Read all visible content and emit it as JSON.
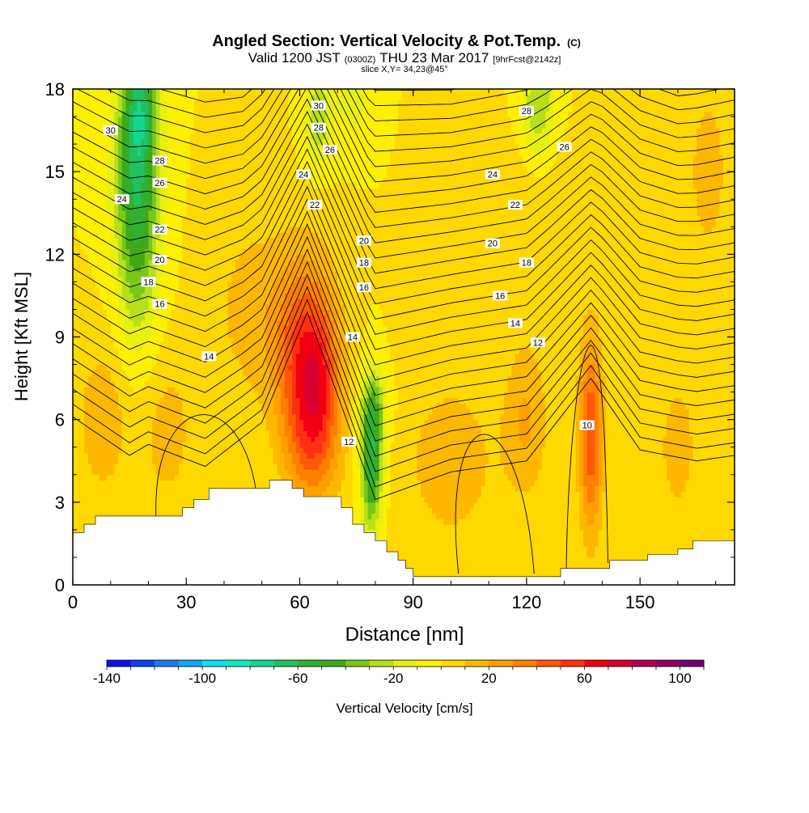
{
  "chart_data": {
    "type": "heatmap",
    "title": "Angled Section: Vertical Velocity & Pot.Temp.",
    "title_unit": "(C)",
    "subtitle_main": "Valid 1200 JST",
    "subtitle_utc": "(0300Z)",
    "subtitle_date": "THU 23 Mar 2017",
    "subtitle_fcst": "[9hrFcst@2142z]",
    "slice_label": "slice X,Y= 34,23@45°",
    "xlabel": "Distance [nm]",
    "ylabel": "Height [Kft MSL]",
    "xlim": [
      0,
      175
    ],
    "ylim": [
      0,
      18
    ],
    "x_ticks": [
      {
        "value": 0,
        "label": "0"
      },
      {
        "value": 30,
        "label": "30"
      },
      {
        "value": 60,
        "label": "60"
      },
      {
        "value": 90,
        "label": "90"
      },
      {
        "value": 120,
        "label": "120"
      },
      {
        "value": 150,
        "label": "150"
      }
    ],
    "y_ticks": [
      {
        "value": 0,
        "label": "0"
      },
      {
        "value": 3,
        "label": "3"
      },
      {
        "value": 6,
        "label": "6"
      },
      {
        "value": 9,
        "label": "9"
      },
      {
        "value": 12,
        "label": "12"
      },
      {
        "value": 15,
        "label": "15"
      },
      {
        "value": 18,
        "label": "18"
      }
    ],
    "colorbar": {
      "label": "Vertical Velocity [cm/s]",
      "min": -140,
      "max": 110,
      "step": 10,
      "tick_labels": [
        {
          "value": -140,
          "label": "-140"
        },
        {
          "value": -100,
          "label": "-100"
        },
        {
          "value": -60,
          "label": "-60"
        },
        {
          "value": -20,
          "label": "-20"
        },
        {
          "value": 20,
          "label": "20"
        },
        {
          "value": 60,
          "label": "60"
        },
        {
          "value": 100,
          "label": "100"
        }
      ],
      "colors": [
        "#1010f0",
        "#1040f0",
        "#1a78f0",
        "#10a8f0",
        "#10e0f0",
        "#10e8c0",
        "#10d890",
        "#20c060",
        "#30b030",
        "#40a818",
        "#78c818",
        "#b8e018",
        "#e8f010",
        "#fff000",
        "#ffd800",
        "#ffb800",
        "#ffa000",
        "#ff8000",
        "#ff5808",
        "#ff3010",
        "#f00010",
        "#d80030",
        "#b00050",
        "#900060",
        "#700070"
      ]
    },
    "velocity_features": [
      {
        "x": 62,
        "y": 8.0,
        "sx": 5.5,
        "sy": 2.5,
        "w": 60
      },
      {
        "x": 66,
        "y": 7.5,
        "sx": 3.0,
        "sy": 1.5,
        "w": 15
      },
      {
        "x": 64,
        "y": 5.0,
        "sx": 5.0,
        "sy": 1.5,
        "w": 25
      },
      {
        "x": 137,
        "y": 5.5,
        "sx": 2.2,
        "sy": 2.5,
        "w": 50
      },
      {
        "x": 17,
        "y": 14.5,
        "sx": 4.0,
        "sy": 3.5,
        "w": -60
      },
      {
        "x": 18,
        "y": 17.5,
        "sx": 3.0,
        "sy": 1.5,
        "w": -30
      },
      {
        "x": 79,
        "y": 4.5,
        "sx": 2.0,
        "sy": 1.8,
        "w": -60
      },
      {
        "x": 80,
        "y": 6.5,
        "sx": 3.0,
        "sy": 1.0,
        "w": -20
      },
      {
        "x": 65,
        "y": 17.0,
        "sx": 2.5,
        "sy": 1.2,
        "w": -30
      },
      {
        "x": 123,
        "y": 17.5,
        "sx": 3.0,
        "sy": 1.5,
        "w": -30
      },
      {
        "x": 74,
        "y": 17.5,
        "sx": 3.0,
        "sy": 1.0,
        "w": -15
      },
      {
        "x": 8,
        "y": 6.0,
        "sx": 5.0,
        "sy": 2.0,
        "w": 18
      },
      {
        "x": 25,
        "y": 5.5,
        "sx": 5.0,
        "sy": 2.0,
        "w": 15
      },
      {
        "x": 48,
        "y": 10.0,
        "sx": 8.0,
        "sy": 2.5,
        "w": 15
      },
      {
        "x": 100,
        "y": 4.5,
        "sx": 10.0,
        "sy": 2.5,
        "w": 15
      },
      {
        "x": 120,
        "y": 6.0,
        "sx": 4.0,
        "sy": 2.0,
        "w": 20
      },
      {
        "x": 160,
        "y": 5.0,
        "sx": 4.0,
        "sy": 2.0,
        "w": 15
      },
      {
        "x": 168,
        "y": 15.0,
        "sx": 4.0,
        "sy": 2.5,
        "w": 15
      },
      {
        "x": 120,
        "y": 13.0,
        "sx": 10.0,
        "sy": 2.0,
        "w": 10
      }
    ],
    "velocity_background": 0,
    "isentropes": [
      {
        "level": 10,
        "label": "10"
      },
      {
        "level": 12,
        "label": "12"
      },
      {
        "level": 14,
        "label": "14"
      },
      {
        "level": 16,
        "label": "16"
      },
      {
        "level": 18,
        "label": "18"
      },
      {
        "level": 20,
        "label": "20"
      },
      {
        "level": 22,
        "label": "22"
      },
      {
        "level": 24,
        "label": "24"
      },
      {
        "level": 26,
        "label": "26"
      },
      {
        "level": 28,
        "label": "28"
      },
      {
        "level": 30,
        "label": "30"
      }
    ],
    "isentrope_labels": [
      {
        "text": "30",
        "x": 10,
        "y": 16.5
      },
      {
        "text": "28",
        "x": 23,
        "y": 15.4
      },
      {
        "text": "26",
        "x": 23,
        "y": 14.6
      },
      {
        "text": "24",
        "x": 13,
        "y": 14.0
      },
      {
        "text": "22",
        "x": 23,
        "y": 12.9
      },
      {
        "text": "20",
        "x": 23,
        "y": 11.8
      },
      {
        "text": "18",
        "x": 20,
        "y": 11.0
      },
      {
        "text": "16",
        "x": 23,
        "y": 10.2
      },
      {
        "text": "14",
        "x": 36,
        "y": 8.3
      },
      {
        "text": "30",
        "x": 65,
        "y": 17.4
      },
      {
        "text": "28",
        "x": 65,
        "y": 16.6
      },
      {
        "text": "26",
        "x": 68,
        "y": 15.8
      },
      {
        "text": "24",
        "x": 61,
        "y": 14.9
      },
      {
        "text": "22",
        "x": 64,
        "y": 13.8
      },
      {
        "text": "20",
        "x": 77,
        "y": 12.5
      },
      {
        "text": "18",
        "x": 77,
        "y": 11.7
      },
      {
        "text": "16",
        "x": 77,
        "y": 10.8
      },
      {
        "text": "14",
        "x": 74,
        "y": 9.0
      },
      {
        "text": "12",
        "x": 73,
        "y": 5.2
      },
      {
        "text": "28",
        "x": 120,
        "y": 17.2
      },
      {
        "text": "26",
        "x": 130,
        "y": 15.9
      },
      {
        "text": "24",
        "x": 111,
        "y": 14.9
      },
      {
        "text": "22",
        "x": 117,
        "y": 13.8
      },
      {
        "text": "20",
        "x": 111,
        "y": 12.4
      },
      {
        "text": "18",
        "x": 120,
        "y": 11.7
      },
      {
        "text": "16",
        "x": 113,
        "y": 10.5
      },
      {
        "text": "14",
        "x": 117,
        "y": 9.5
      },
      {
        "text": "12",
        "x": 123,
        "y": 8.8
      },
      {
        "text": "10",
        "x": 136,
        "y": 5.8
      }
    ],
    "terrain_profile": [
      [
        0,
        1.9
      ],
      [
        3,
        1.9
      ],
      [
        3,
        2.2
      ],
      [
        6,
        2.2
      ],
      [
        6,
        2.5
      ],
      [
        29,
        2.5
      ],
      [
        29,
        2.8
      ],
      [
        32,
        2.8
      ],
      [
        32,
        3.1
      ],
      [
        36,
        3.1
      ],
      [
        36,
        3.5
      ],
      [
        52,
        3.5
      ],
      [
        52,
        3.8
      ],
      [
        58,
        3.8
      ],
      [
        58,
        3.5
      ],
      [
        61,
        3.5
      ],
      [
        61,
        3.2
      ],
      [
        71,
        3.2
      ],
      [
        71,
        2.8
      ],
      [
        74,
        2.8
      ],
      [
        74,
        2.2
      ],
      [
        77,
        2.2
      ],
      [
        77,
        1.9
      ],
      [
        80,
        1.9
      ],
      [
        80,
        1.6
      ],
      [
        83,
        1.6
      ],
      [
        83,
        1.2
      ],
      [
        86,
        1.2
      ],
      [
        86,
        0.9
      ],
      [
        88,
        0.9
      ],
      [
        88,
        0.6
      ],
      [
        90,
        0.6
      ],
      [
        90,
        0.3
      ],
      [
        129,
        0.3
      ],
      [
        129,
        0.6
      ],
      [
        142,
        0.6
      ],
      [
        142,
        0.9
      ],
      [
        152,
        0.9
      ],
      [
        152,
        1.1
      ],
      [
        160,
        1.1
      ],
      [
        160,
        1.3
      ],
      [
        164,
        1.3
      ],
      [
        164,
        1.6
      ],
      [
        175,
        1.6
      ]
    ],
    "grid": false,
    "legend_placement": "bottom"
  }
}
